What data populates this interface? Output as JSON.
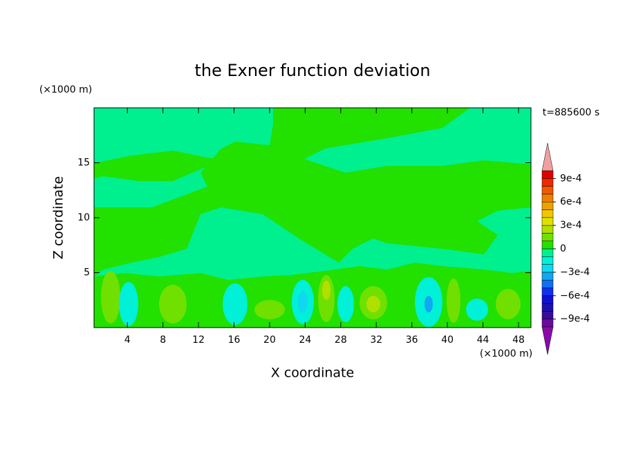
{
  "chart_data": {
    "type": "contour",
    "title": "the Exner function deviation",
    "xlabel": "X coordinate",
    "ylabel": "Z coordinate",
    "x_unit": "(×1000 m)",
    "y_unit": "(×1000 m)",
    "time_label": "t=885600 s",
    "xlim": [
      0.25,
      49.4
    ],
    "ylim": [
      0,
      20
    ],
    "xticks": [
      4,
      8,
      12,
      16,
      20,
      24,
      28,
      32,
      36,
      40,
      44,
      48
    ],
    "yticks": [
      5,
      10,
      15
    ],
    "colorbar": {
      "levels": [
        -0.001,
        -0.0009,
        -0.0008,
        -0.0007,
        -0.0006,
        -0.0005,
        -0.0004,
        -0.0003,
        -0.0002,
        -0.0001,
        0,
        0.0001,
        0.0002,
        0.0003,
        0.0004,
        0.0005,
        0.0006,
        0.0007,
        0.0008,
        0.0009,
        0.001
      ],
      "colors": [
        "#6a0a9a",
        "#3a0a9a",
        "#1a10b0",
        "#1010d0",
        "#1030f0",
        "#1070f0",
        "#10a8f0",
        "#10d8f0",
        "#00f0d8",
        "#00f090",
        "#22e000",
        "#70e000",
        "#b0e000",
        "#e0e000",
        "#f0c800",
        "#f0a000",
        "#f08000",
        "#f05800",
        "#f02800",
        "#e00000"
      ],
      "under_color": "#8a0aa8",
      "over_color": "#f0a0a0",
      "ticks": [
        {
          "value": -0.0009,
          "label": "−9e-4"
        },
        {
          "value": -0.0006,
          "label": "−6e-4"
        },
        {
          "value": -0.0003,
          "label": "−3e-4"
        },
        0,
        {
          "value": 0.0003,
          "label": "3e-4"
        },
        {
          "value": 0.0006,
          "label": "6e-4"
        },
        {
          "value": 0.0009,
          "label": "9e-4"
        }
      ]
    }
  }
}
